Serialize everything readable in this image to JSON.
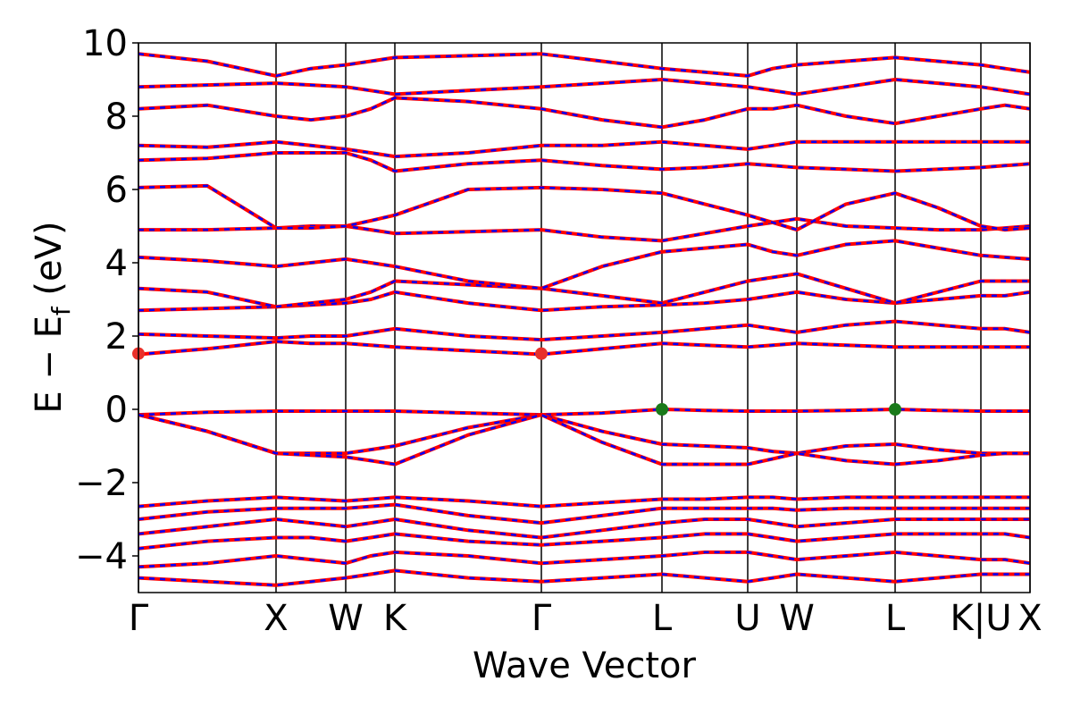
{
  "chart_data": {
    "type": "line",
    "xlabel": "Wave Vector",
    "ylabel": [
      "E − E",
      "f",
      " (eV)"
    ],
    "xlim": [
      0,
      9.98
    ],
    "ylim": [
      -5,
      10
    ],
    "xticks": [
      {
        "value": 0,
        "label": "Γ"
      },
      {
        "value": 1.54,
        "label": "X"
      },
      {
        "value": 2.32,
        "label": "W"
      },
      {
        "value": 2.87,
        "label": "K"
      },
      {
        "value": 4.51,
        "label": "Γ"
      },
      {
        "value": 5.86,
        "label": "L"
      },
      {
        "value": 6.82,
        "label": "U"
      },
      {
        "value": 7.37,
        "label": "W"
      },
      {
        "value": 8.47,
        "label": "L"
      },
      {
        "value": 9.43,
        "label": "K|U"
      },
      {
        "value": 9.98,
        "label": "X"
      }
    ],
    "yticks": [
      {
        "value": -4,
        "label": "−4"
      },
      {
        "value": -2,
        "label": "−2"
      },
      0,
      2,
      4,
      6,
      8,
      10
    ],
    "color": "#ff0000",
    "dash_color": "#0000ff",
    "grid": true,
    "x": [
      0,
      0.77,
      1.54,
      1.93,
      2.32,
      2.6,
      2.87,
      3.69,
      4.51,
      5.19,
      5.86,
      6.34,
      6.82,
      7.1,
      7.37,
      7.92,
      8.47,
      8.95,
      9.43,
      9.7,
      9.98
    ],
    "series": [
      {
        "values": [
          -0.15,
          -0.08,
          -0.05,
          -0.05,
          -0.05,
          -0.05,
          -0.05,
          -0.1,
          -0.15,
          -0.1,
          0,
          -0.03,
          -0.05,
          -0.05,
          -0.05,
          -0.03,
          0,
          -0.03,
          -0.05,
          -0.05,
          -0.05
        ]
      },
      {
        "values": [
          -0.15,
          -0.6,
          -1.2,
          -1.2,
          -1.2,
          -1.1,
          -1.0,
          -0.5,
          -0.15,
          -0.6,
          -0.95,
          -1.0,
          -1.05,
          -1.15,
          -1.2,
          -1.0,
          -0.95,
          -1.1,
          -1.2,
          -1.2,
          -1.2
        ]
      },
      {
        "values": [
          -0.15,
          -0.6,
          -1.2,
          -1.25,
          -1.3,
          -1.4,
          -1.5,
          -0.7,
          -0.15,
          -0.9,
          -1.5,
          -1.5,
          -1.5,
          -1.35,
          -1.2,
          -1.4,
          -1.5,
          -1.4,
          -1.25,
          -1.2,
          -1.2
        ]
      },
      {
        "values": [
          -2.65,
          -2.5,
          -2.4,
          -2.45,
          -2.5,
          -2.45,
          -2.4,
          -2.5,
          -2.65,
          -2.55,
          -2.45,
          -2.45,
          -2.4,
          -2.4,
          -2.45,
          -2.4,
          -2.4,
          -2.4,
          -2.4,
          -2.4,
          -2.4
        ]
      },
      {
        "values": [
          -3.0,
          -2.8,
          -2.7,
          -2.7,
          -2.7,
          -2.65,
          -2.6,
          -2.9,
          -3.1,
          -2.9,
          -2.7,
          -2.7,
          -2.7,
          -2.7,
          -2.75,
          -2.7,
          -2.7,
          -2.7,
          -2.7,
          -2.7,
          -2.7
        ]
      },
      {
        "values": [
          -3.4,
          -3.2,
          -3.0,
          -3.1,
          -3.2,
          -3.1,
          -3.0,
          -3.3,
          -3.5,
          -3.3,
          -3.1,
          -3.0,
          -3.0,
          -3.1,
          -3.2,
          -3.1,
          -3.0,
          -3.0,
          -3.0,
          -3.0,
          -3.0
        ]
      },
      {
        "values": [
          -3.8,
          -3.6,
          -3.5,
          -3.5,
          -3.6,
          -3.5,
          -3.4,
          -3.6,
          -3.7,
          -3.6,
          -3.5,
          -3.4,
          -3.4,
          -3.5,
          -3.6,
          -3.5,
          -3.4,
          -3.4,
          -3.4,
          -3.4,
          -3.5
        ]
      },
      {
        "values": [
          -4.3,
          -4.2,
          -4.0,
          -4.1,
          -4.2,
          -4.0,
          -3.9,
          -4.0,
          -4.2,
          -4.1,
          -4.0,
          -3.9,
          -3.9,
          -4.0,
          -4.1,
          -4.0,
          -3.9,
          -4.0,
          -4.1,
          -4.1,
          -4.2
        ]
      },
      {
        "values": [
          -4.6,
          -4.7,
          -4.8,
          -4.7,
          -4.6,
          -4.5,
          -4.4,
          -4.6,
          -4.7,
          -4.6,
          -4.5,
          -4.6,
          -4.7,
          -4.6,
          -4.5,
          -4.6,
          -4.7,
          -4.6,
          -4.5,
          -4.5,
          -4.5
        ]
      },
      {
        "values": [
          1.5,
          1.65,
          1.85,
          1.8,
          1.8,
          1.75,
          1.7,
          1.6,
          1.5,
          1.65,
          1.8,
          1.75,
          1.7,
          1.75,
          1.8,
          1.75,
          1.7,
          1.7,
          1.7,
          1.7,
          1.7
        ]
      },
      {
        "values": [
          2.05,
          2.0,
          1.95,
          2.0,
          2.0,
          2.1,
          2.2,
          2.0,
          1.9,
          2.0,
          2.1,
          2.2,
          2.3,
          2.2,
          2.1,
          2.3,
          2.4,
          2.3,
          2.2,
          2.2,
          2.1
        ]
      },
      {
        "values": [
          2.7,
          2.75,
          2.8,
          2.85,
          2.9,
          3.0,
          3.2,
          2.9,
          2.7,
          2.8,
          2.85,
          2.9,
          3.0,
          3.1,
          3.2,
          3.0,
          2.9,
          3.0,
          3.1,
          3.1,
          3.2
        ]
      },
      {
        "values": [
          3.3,
          3.2,
          2.8,
          2.9,
          3.0,
          3.2,
          3.5,
          3.4,
          3.3,
          3.1,
          2.9,
          3.2,
          3.5,
          3.6,
          3.7,
          3.3,
          2.9,
          3.2,
          3.5,
          3.5,
          3.5
        ]
      },
      {
        "values": [
          4.15,
          4.05,
          3.9,
          4.0,
          4.1,
          4.0,
          3.9,
          3.5,
          3.3,
          3.9,
          4.3,
          4.4,
          4.5,
          4.3,
          4.2,
          4.5,
          4.6,
          4.4,
          4.2,
          4.15,
          4.1
        ]
      },
      {
        "values": [
          4.9,
          4.9,
          4.95,
          5.0,
          5.0,
          4.9,
          4.8,
          4.85,
          4.9,
          4.7,
          4.6,
          4.8,
          5.0,
          5.1,
          5.2,
          5.0,
          4.95,
          4.9,
          4.9,
          4.95,
          5.0
        ]
      },
      {
        "values": [
          6.05,
          6.1,
          4.95,
          4.95,
          5.0,
          5.15,
          5.3,
          6.0,
          6.05,
          6.0,
          5.9,
          5.6,
          5.3,
          5.1,
          4.9,
          5.6,
          5.9,
          5.5,
          5.0,
          4.9,
          4.95
        ]
      },
      {
        "values": [
          6.8,
          6.85,
          7.0,
          7.0,
          7.0,
          6.8,
          6.5,
          6.7,
          6.8,
          6.65,
          6.55,
          6.6,
          6.7,
          6.65,
          6.6,
          6.55,
          6.5,
          6.55,
          6.6,
          6.65,
          6.7
        ]
      },
      {
        "values": [
          7.2,
          7.15,
          7.3,
          7.2,
          7.1,
          7.0,
          6.9,
          7.0,
          7.2,
          7.2,
          7.3,
          7.2,
          7.1,
          7.2,
          7.3,
          7.3,
          7.3,
          7.3,
          7.3,
          7.3,
          7.3
        ]
      },
      {
        "values": [
          8.2,
          8.3,
          8.0,
          7.9,
          8.0,
          8.2,
          8.5,
          8.4,
          8.2,
          7.9,
          7.7,
          7.9,
          8.2,
          8.2,
          8.3,
          8.0,
          7.8,
          8.0,
          8.2,
          8.3,
          8.2
        ]
      },
      {
        "values": [
          8.8,
          8.85,
          8.9,
          8.85,
          8.8,
          8.7,
          8.6,
          8.7,
          8.8,
          8.9,
          9.0,
          8.9,
          8.8,
          8.7,
          8.6,
          8.8,
          9.0,
          8.9,
          8.8,
          8.7,
          8.6
        ]
      },
      {
        "values": [
          9.7,
          9.5,
          9.1,
          9.3,
          9.4,
          9.5,
          9.6,
          9.65,
          9.7,
          9.5,
          9.3,
          9.2,
          9.1,
          9.3,
          9.4,
          9.5,
          9.6,
          9.5,
          9.4,
          9.3,
          9.2
        ]
      }
    ],
    "points": [
      {
        "x": 0,
        "y": 1.52,
        "color": "#e8302a"
      },
      {
        "x": 4.51,
        "y": 1.52,
        "color": "#e8302a"
      },
      {
        "x": 5.86,
        "y": 0,
        "color": "#1a7a1a"
      },
      {
        "x": 8.47,
        "y": 0,
        "color": "#1a7a1a"
      }
    ]
  }
}
